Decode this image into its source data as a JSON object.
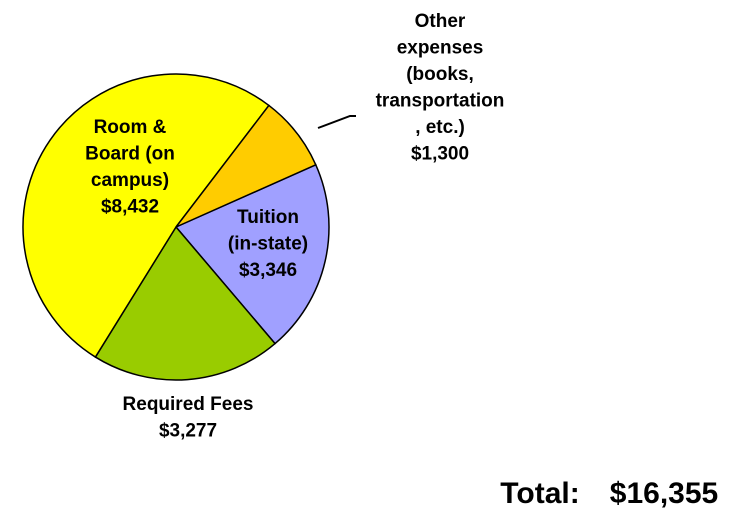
{
  "chart_data": {
    "type": "pie",
    "labels": [
      [
        "Tuition",
        "(in-state)"
      ],
      [
        "Required Fees"
      ],
      [
        "Room &",
        "Board (on",
        "campus)"
      ],
      [
        "Other",
        "expenses",
        "(books,",
        "transportation",
        ", etc.)"
      ]
    ],
    "values": [
      3346,
      3277,
      8432,
      1300
    ],
    "value_labels": [
      "$3,346",
      "$3,277",
      "$8,432",
      "$1,300"
    ],
    "colors": [
      "#a0a0ff",
      "#99cc00",
      "#ffff00",
      "#ffcc00"
    ],
    "total_label": "Total:",
    "total": "$16,355"
  }
}
